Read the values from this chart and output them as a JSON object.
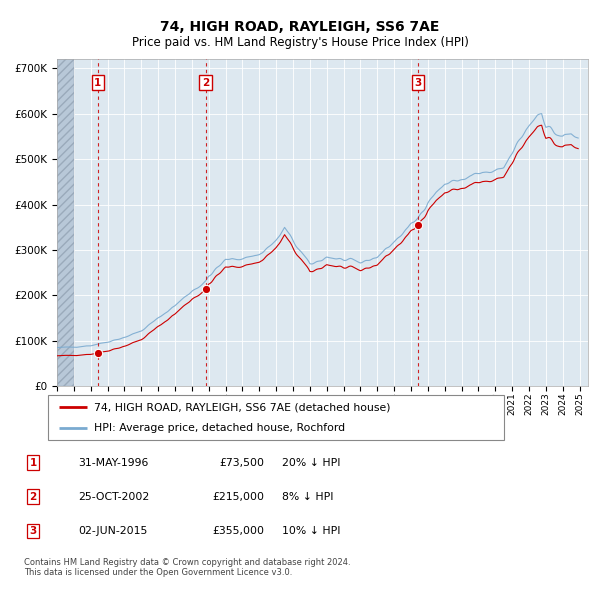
{
  "title": "74, HIGH ROAD, RAYLEIGH, SS6 7AE",
  "subtitle": "Price paid vs. HM Land Registry's House Price Index (HPI)",
  "ylim": [
    0,
    720000
  ],
  "yticks": [
    0,
    100000,
    200000,
    300000,
    400000,
    500000,
    600000,
    700000
  ],
  "ytick_labels": [
    "£0",
    "£100K",
    "£200K",
    "£300K",
    "£400K",
    "£500K",
    "£600K",
    "£700K"
  ],
  "xlim_start": 1994.0,
  "xlim_end": 2025.5,
  "hpi_color": "#7aaad0",
  "price_color": "#cc0000",
  "dashed_color": "#cc0000",
  "sale_points": [
    {
      "year": 1996.42,
      "price": 73500,
      "label": "1"
    },
    {
      "year": 2002.82,
      "price": 215000,
      "label": "2"
    },
    {
      "year": 2015.42,
      "price": 355000,
      "label": "3"
    }
  ],
  "legend_entries": [
    "74, HIGH ROAD, RAYLEIGH, SS6 7AE (detached house)",
    "HPI: Average price, detached house, Rochford"
  ],
  "table_rows": [
    {
      "num": "1",
      "date": "31-MAY-1996",
      "price": "£73,500",
      "hpi": "20% ↓ HPI"
    },
    {
      "num": "2",
      "date": "25-OCT-2002",
      "price": "£215,000",
      "hpi": "8% ↓ HPI"
    },
    {
      "num": "3",
      "date": "02-JUN-2015",
      "price": "£355,000",
      "hpi": "10% ↓ HPI"
    }
  ],
  "footnote": "Contains HM Land Registry data © Crown copyright and database right 2024.\nThis data is licensed under the Open Government Licence v3.0."
}
